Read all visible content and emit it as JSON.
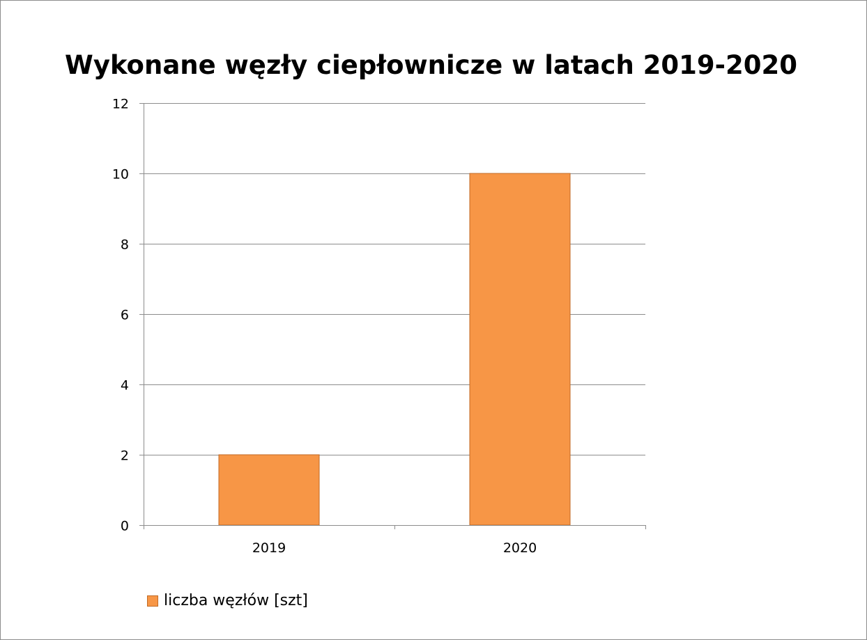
{
  "chart_data": {
    "type": "bar",
    "title": "Wykonane węzły ciepłownicze w latach 2019-2020",
    "categories": [
      "2019",
      "2020"
    ],
    "series": [
      {
        "name": "liczba węzłów [szt]",
        "values": [
          2,
          10
        ],
        "color": "#f79646"
      }
    ],
    "ylim": [
      0,
      12
    ],
    "yticks": [
      "0",
      "2",
      "4",
      "6",
      "8",
      "10",
      "12"
    ],
    "grid": true,
    "legend_position": "bottom-left"
  }
}
